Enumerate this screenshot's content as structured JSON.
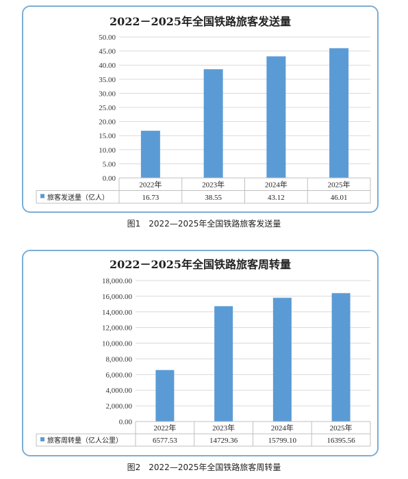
{
  "chart_data": [
    {
      "type": "bar",
      "title": "2022－2025年全国铁路旅客发送量",
      "categories": [
        "2022年",
        "2023年",
        "2024年",
        "2025年"
      ],
      "series": [
        {
          "name": "旅客发送量（亿人）",
          "values": [
            16.73,
            38.55,
            43.12,
            46.01
          ],
          "labels": [
            "16.73",
            "38.55",
            "43.12",
            "46.01"
          ]
        }
      ],
      "ylim": [
        0,
        50
      ],
      "yticks": [
        "0.00",
        "5.00",
        "10.00",
        "15.00",
        "20.00",
        "25.00",
        "30.00",
        "35.00",
        "40.00",
        "45.00",
        "50.00"
      ],
      "grid": true,
      "data_table": true,
      "bar_color": "#5b9bd5",
      "caption": "图1　2022—2025年全国铁路旅客发送量"
    },
    {
      "type": "bar",
      "title": "2022－2025年全国铁路旅客周转量",
      "categories": [
        "2022年",
        "2023年",
        "2024年",
        "2025年"
      ],
      "series": [
        {
          "name": "旅客周转量（亿人公里）",
          "values": [
            6577.53,
            14729.36,
            15799.1,
            16395.56
          ],
          "labels": [
            "6577.53",
            "14729.36",
            "15799.10",
            "16395.56"
          ]
        }
      ],
      "ylim": [
        0,
        18000
      ],
      "yticks": [
        "0.00",
        "2,000.00",
        "4,000.00",
        "6,000.00",
        "8,000.00",
        "10,000.00",
        "12,000.00",
        "14,000.00",
        "16,000.00",
        "18,000.00"
      ],
      "grid": true,
      "data_table": true,
      "bar_color": "#5b9bd5",
      "caption": "图2　2022—2025年全国铁路旅客周转量"
    }
  ]
}
